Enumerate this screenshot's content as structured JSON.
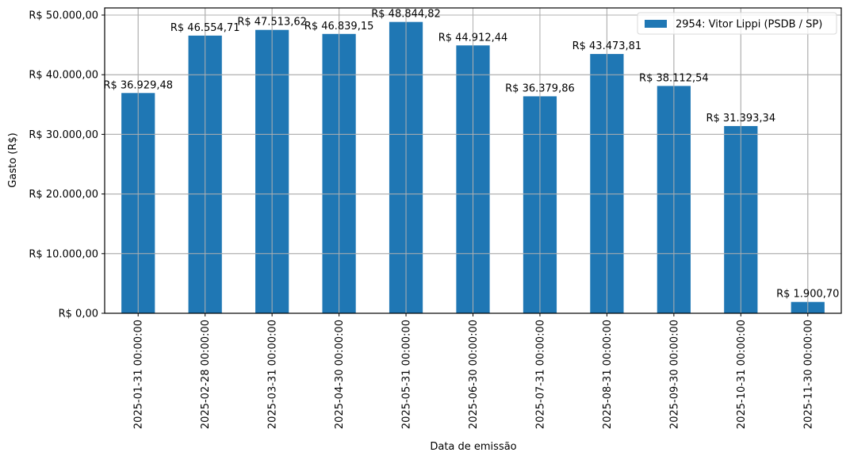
{
  "chart_data": {
    "type": "bar",
    "title": "",
    "xlabel": "Data de emissão",
    "ylabel": "Gasto (R$)",
    "ylim": [
      0,
      51200
    ],
    "grid": true,
    "legend_position": "upper right",
    "categories": [
      "2025-01-31 00:00:00",
      "2025-02-28 00:00:00",
      "2025-03-31 00:00:00",
      "2025-04-30 00:00:00",
      "2025-05-31 00:00:00",
      "2025-06-30 00:00:00",
      "2025-07-31 00:00:00",
      "2025-08-31 00:00:00",
      "2025-09-30 00:00:00",
      "2025-10-31 00:00:00",
      "2025-11-30 00:00:00"
    ],
    "series": [
      {
        "name": "2954: Vitor Lippi (PSDB / SP)",
        "color": "#1f77b4",
        "values": [
          36929.48,
          46554.71,
          47513.62,
          46839.15,
          48844.82,
          44912.44,
          36379.86,
          43473.81,
          38112.54,
          31393.34,
          1900.7
        ],
        "labels": [
          "R$ 36.929,48",
          "R$ 46.554,71",
          "R$ 47.513,62",
          "R$ 46.839,15",
          "R$ 48.844,82",
          "R$ 44.912,44",
          "R$ 36.379,86",
          "R$ 43.473,81",
          "R$ 38.112,54",
          "R$ 31.393,34",
          "R$ 1.900,70"
        ]
      }
    ],
    "yticks": [
      0,
      10000,
      20000,
      30000,
      40000,
      50000
    ],
    "ytick_labels": [
      "R$ 0,00",
      "R$ 10.000,00",
      "R$ 20.000,00",
      "R$ 30.000,00",
      "R$ 40.000,00",
      "R$ 50.000,00"
    ]
  }
}
